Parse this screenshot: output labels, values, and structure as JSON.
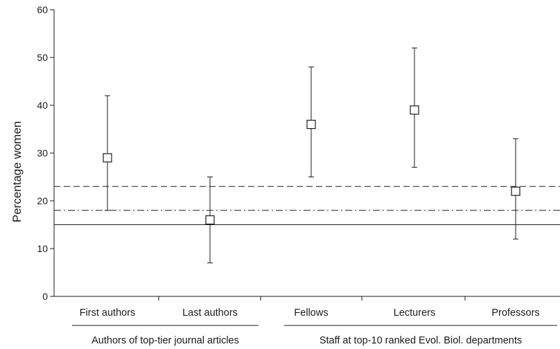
{
  "chart_data": {
    "type": "scatter",
    "title": "",
    "xlabel": "",
    "ylabel": "Percentage women",
    "ylim": [
      0,
      60
    ],
    "yticks": [
      0,
      10,
      20,
      30,
      40,
      50,
      60
    ],
    "grid": false,
    "categories": [
      "First authors",
      "Last authors",
      "Fellows",
      "Lecturers",
      "Professors"
    ],
    "groups": [
      {
        "label": "Authors of top-tier journal articles",
        "categories": [
          "First authors",
          "Last authors"
        ]
      },
      {
        "label": "Staff at top-10 ranked Evol. Biol. departments",
        "categories": [
          "Fellows",
          "Lecturers",
          "Professors"
        ]
      }
    ],
    "series": [
      {
        "marker": "open-square",
        "values": [
          29,
          16,
          36,
          39,
          22
        ],
        "lower": [
          18,
          7,
          25,
          27,
          12
        ],
        "upper": [
          42,
          25,
          48,
          52,
          33
        ]
      }
    ],
    "reference_lines": [
      {
        "y": 23,
        "style": "dashed"
      },
      {
        "y": 18,
        "style": "dash-dot"
      },
      {
        "y": 15,
        "style": "solid"
      }
    ]
  }
}
